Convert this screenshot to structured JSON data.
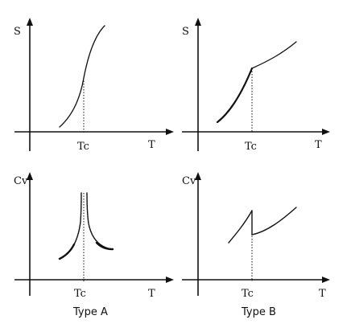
{
  "panels": {
    "top_left": {
      "y_label": "S",
      "x_label": "T",
      "tick_label": "Tc"
    },
    "top_right": {
      "y_label": "S",
      "x_label": "T",
      "tick_label": "Tc"
    },
    "bottom_left": {
      "y_label": "Cv",
      "x_label": "T",
      "tick_label": "Tc"
    },
    "bottom_right": {
      "y_label": "Cv",
      "x_label": "T",
      "tick_label": "Tc"
    }
  },
  "captions": {
    "left": "Type A",
    "right": "Type B"
  }
}
